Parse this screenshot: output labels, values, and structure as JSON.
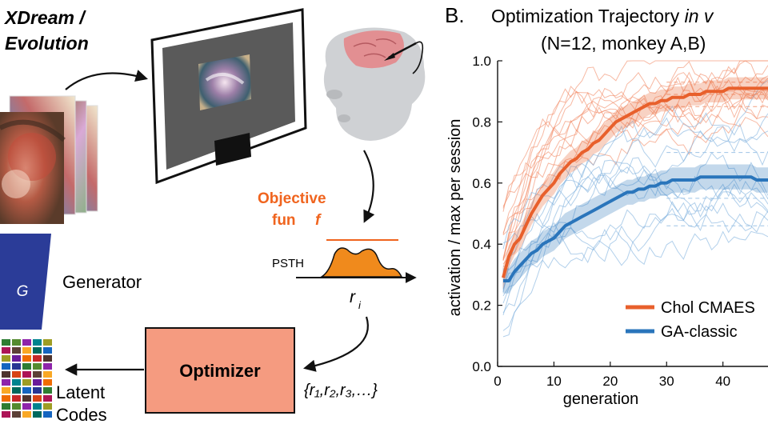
{
  "loop": {
    "title_line1": "XDream /",
    "title_line2": "Evolution",
    "generator_symbol": "G",
    "generator_label": "Generator",
    "objective_line1": "Objective",
    "objective_line2": "fun",
    "objective_symbol": "f",
    "psth_label": "PSTH",
    "response_symbol": "r",
    "response_sub": "i",
    "optimizer_label": "Optimizer",
    "response_set": "{r₁,r₂,r₃,…}",
    "latent_line1": "Latent",
    "latent_line2": "Codes"
  },
  "chart_data": {
    "type": "line",
    "panel_label": "B.",
    "title_main": "Optimization Trajectory ",
    "title_italic": "in v",
    "subtitle": "(N=12, monkey A,B)",
    "xlabel": "generation",
    "ylabel": "activation / max per session",
    "xlim": [
      0,
      48
    ],
    "ylim": [
      0,
      1
    ],
    "xticks": [
      0,
      10,
      20,
      30,
      40
    ],
    "xtick_labels": [
      "0",
      "10",
      "20",
      "30",
      "40"
    ],
    "yticks": [
      0,
      0.2,
      0.4,
      0.6,
      0.8,
      1.0
    ],
    "ytick_labels": [
      "0.0",
      "0.2",
      "0.4",
      "0.6",
      "0.8",
      "1.0"
    ],
    "legend_position": "bottom-right",
    "series": [
      {
        "name": "Chol CMAES",
        "color": "#e8602c",
        "x": [
          1,
          2,
          3,
          4,
          5,
          6,
          7,
          8,
          9,
          10,
          11,
          12,
          13,
          14,
          15,
          16,
          17,
          18,
          19,
          20,
          21,
          22,
          23,
          24,
          25,
          26,
          27,
          28,
          29,
          30,
          31,
          32,
          33,
          34,
          35,
          36,
          37,
          38,
          39,
          40,
          41,
          42,
          43,
          44,
          45,
          46,
          47,
          48
        ],
        "mean": [
          0.29,
          0.36,
          0.4,
          0.42,
          0.46,
          0.5,
          0.53,
          0.56,
          0.58,
          0.6,
          0.63,
          0.65,
          0.67,
          0.68,
          0.7,
          0.71,
          0.73,
          0.74,
          0.76,
          0.78,
          0.8,
          0.81,
          0.82,
          0.83,
          0.84,
          0.85,
          0.86,
          0.86,
          0.87,
          0.87,
          0.88,
          0.88,
          0.88,
          0.89,
          0.89,
          0.89,
          0.9,
          0.9,
          0.9,
          0.9,
          0.91,
          0.91,
          0.91,
          0.91,
          0.91,
          0.91,
          0.91,
          0.91
        ],
        "sem": 0.035
      },
      {
        "name": "GA-classic",
        "color": "#2a75bb",
        "x": [
          1,
          2,
          3,
          4,
          5,
          6,
          7,
          8,
          9,
          10,
          11,
          12,
          13,
          14,
          15,
          16,
          17,
          18,
          19,
          20,
          21,
          22,
          23,
          24,
          25,
          26,
          27,
          28,
          29,
          30,
          31,
          32,
          33,
          34,
          35,
          36,
          37,
          38,
          39,
          40,
          41,
          42,
          43,
          44,
          45,
          46,
          47,
          48
        ],
        "mean": [
          0.28,
          0.28,
          0.31,
          0.33,
          0.35,
          0.37,
          0.38,
          0.4,
          0.41,
          0.42,
          0.44,
          0.46,
          0.47,
          0.48,
          0.49,
          0.5,
          0.51,
          0.52,
          0.53,
          0.54,
          0.55,
          0.56,
          0.57,
          0.57,
          0.58,
          0.58,
          0.59,
          0.59,
          0.6,
          0.6,
          0.61,
          0.61,
          0.61,
          0.61,
          0.61,
          0.62,
          0.62,
          0.62,
          0.62,
          0.62,
          0.62,
          0.62,
          0.62,
          0.62,
          0.62,
          0.61,
          0.61,
          0.61
        ],
        "sem": 0.04
      }
    ],
    "session_traces": {
      "cmaes_final_levels": [
        0.82,
        0.86,
        0.88,
        0.9,
        0.93,
        0.95,
        0.97,
        1.0,
        0.92,
        0.85,
        0.96,
        0.89
      ],
      "ga_final_levels": [
        0.45,
        0.5,
        0.54,
        0.58,
        0.6,
        0.63,
        0.66,
        0.7,
        0.74,
        0.78,
        0.52,
        0.68
      ]
    }
  },
  "colors": {
    "accent_orange": "#f0641e",
    "optimizer_fill": "#f59b80",
    "generator_fill": "#2b3c98",
    "psth_fill": "#f08a1c",
    "monitor_screen": "#5a5a5a"
  }
}
